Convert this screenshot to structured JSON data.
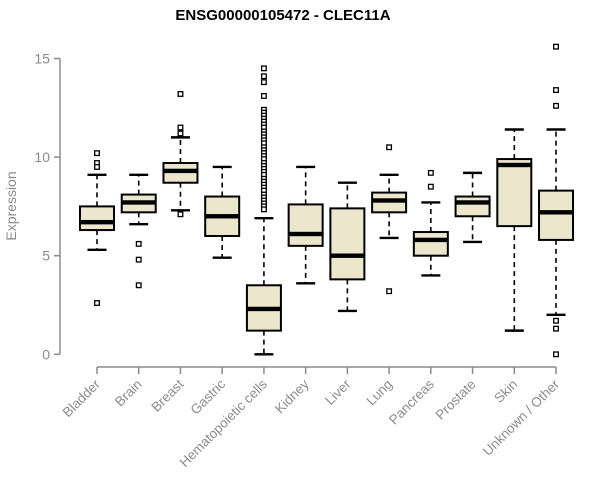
{
  "title": "ENSG00000105472 - CLEC11A",
  "colors": {
    "background": "#ffffff",
    "axis": "#8c8c8c",
    "tick_label": "#8c8c8c",
    "box_fill": "#ECE6CC",
    "box_border": "#000000",
    "median": "#000000",
    "title_text": "#000000"
  },
  "chart_data": {
    "type": "boxplot",
    "title": "ENSG00000105472 - CLEC11A",
    "xlabel": "",
    "ylabel": "Expression",
    "ylim": [
      0,
      15
    ],
    "yticks": [
      0,
      5,
      10,
      15
    ],
    "grid": "off",
    "legend": "none",
    "categories": [
      "Bladder",
      "Brain",
      "Breast",
      "Gastric",
      "Hematopoietic cells",
      "Kidney",
      "Liver",
      "Lung",
      "Pancreas",
      "Prostate",
      "Skin",
      "Unknown / Other"
    ],
    "series": [
      {
        "name": "Bladder",
        "whisker_low": 5.3,
        "q1": 6.3,
        "median": 6.7,
        "q3": 7.5,
        "whisker_high": 9.1,
        "outliers": [
          10.2,
          9.7,
          9.5,
          2.6
        ]
      },
      {
        "name": "Brain",
        "whisker_low": 6.6,
        "q1": 7.2,
        "median": 7.7,
        "q3": 8.1,
        "whisker_high": 9.1,
        "outliers": [
          5.6,
          4.8,
          3.5
        ]
      },
      {
        "name": "Breast",
        "whisker_low": 7.3,
        "q1": 8.7,
        "median": 9.3,
        "q3": 9.7,
        "whisker_high": 11.0,
        "outliers": [
          13.2,
          11.5,
          11.2,
          7.1
        ]
      },
      {
        "name": "Gastric",
        "whisker_low": 4.9,
        "q1": 6.0,
        "median": 7.0,
        "q3": 8.0,
        "whisker_high": 9.5,
        "outliers": []
      },
      {
        "name": "Hematopoietic cells",
        "whisker_low": 0.0,
        "q1": 1.2,
        "median": 2.3,
        "q3": 3.5,
        "whisker_high": 6.9,
        "outliers": [
          14.5,
          14.1,
          13.8,
          13.1,
          12.4,
          12.25,
          12.1,
          11.95,
          11.8,
          11.65,
          11.5,
          11.3,
          11.15,
          11.0,
          10.85,
          10.7,
          10.5,
          10.35,
          10.2,
          10.05,
          9.9,
          9.7,
          9.55,
          9.4,
          9.25,
          9.1,
          8.9,
          8.75,
          8.6,
          8.45,
          8.3,
          8.1,
          7.95,
          7.8,
          7.65,
          7.5,
          7.35
        ]
      },
      {
        "name": "Kidney",
        "whisker_low": 3.6,
        "q1": 5.5,
        "median": 6.1,
        "q3": 7.6,
        "whisker_high": 9.5,
        "outliers": []
      },
      {
        "name": "Liver",
        "whisker_low": 2.2,
        "q1": 3.8,
        "median": 5.0,
        "q3": 7.4,
        "whisker_high": 8.7,
        "outliers": []
      },
      {
        "name": "Lung",
        "whisker_low": 5.9,
        "q1": 7.2,
        "median": 7.8,
        "q3": 8.2,
        "whisker_high": 9.1,
        "outliers": [
          10.5,
          3.2
        ]
      },
      {
        "name": "Pancreas",
        "whisker_low": 4.0,
        "q1": 5.0,
        "median": 5.8,
        "q3": 6.2,
        "whisker_high": 7.7,
        "outliers": [
          9.2,
          8.5
        ]
      },
      {
        "name": "Prostate",
        "whisker_low": 5.7,
        "q1": 7.0,
        "median": 7.7,
        "q3": 8.0,
        "whisker_high": 9.2,
        "outliers": []
      },
      {
        "name": "Skin",
        "whisker_low": 1.2,
        "q1": 6.5,
        "median": 9.6,
        "q3": 9.9,
        "whisker_high": 11.4,
        "outliers": []
      },
      {
        "name": "Unknown / Other",
        "whisker_low": 2.0,
        "q1": 5.8,
        "median": 7.2,
        "q3": 8.3,
        "whisker_high": 11.4,
        "outliers": [
          15.6,
          13.4,
          12.6,
          1.7,
          1.3,
          0.0
        ]
      }
    ]
  }
}
